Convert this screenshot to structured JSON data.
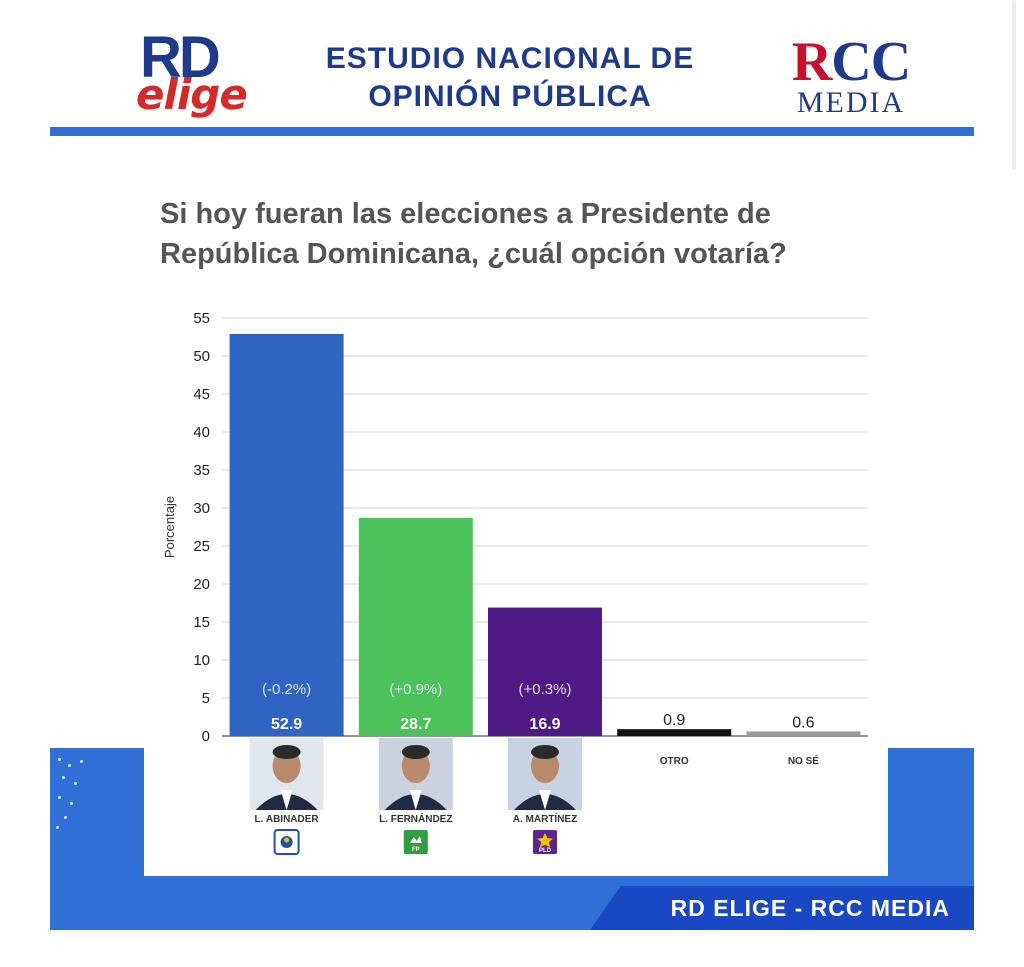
{
  "header": {
    "logo_left_line1": "RD",
    "logo_left_line2": "elige",
    "title_line1": "ESTUDIO NACIONAL DE",
    "title_line2": "OPINIÓN PÚBLICA",
    "logo_right_r": "R",
    "logo_right_cc": "CC",
    "logo_right_media": "MEDIA"
  },
  "chart_data": {
    "type": "bar",
    "title": "Si hoy fueran las elecciones a Presidente de República Dominicana, ¿cuál opción votaría?",
    "ylabel": "Porcentaje",
    "xlabel": "",
    "ylim": [
      0,
      55
    ],
    "yticks": [
      0,
      5,
      10,
      15,
      20,
      25,
      30,
      35,
      40,
      45,
      50,
      55
    ],
    "grid": true,
    "categories": [
      "L. ABINADER",
      "L. FERNÁNDEZ",
      "A. MARTÍNEZ",
      "OTRO",
      "NO SÉ"
    ],
    "values": [
      52.9,
      28.7,
      16.9,
      0.9,
      0.6
    ],
    "value_labels": [
      "52.9",
      "28.7",
      "16.9",
      "0.9",
      "0.6"
    ],
    "changes": [
      "(-0.2%)",
      "(+0.9%)",
      "(+0.3%)",
      "",
      ""
    ],
    "colors": [
      "#2f64c4",
      "#4cc25a",
      "#4f1a86",
      "#111111",
      "#9a9a9a"
    ],
    "party_logos": [
      "prm-logo-icon",
      "fp-logo-icon",
      "pld-logo-icon",
      "",
      ""
    ],
    "party_logo_text": [
      "",
      "FP",
      "PLD",
      "",
      ""
    ]
  },
  "footer": {
    "text": "RD ELIGE - RCC MEDIA"
  },
  "colors": {
    "brand_blue": "#2f6fd6",
    "dark_blue": "#1e3a8a",
    "red": "#d42a2a"
  }
}
